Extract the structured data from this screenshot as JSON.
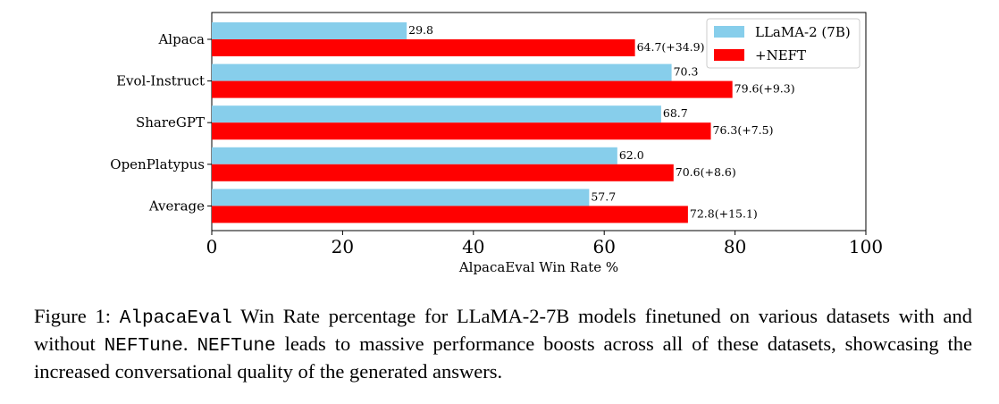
{
  "chart_data": {
    "type": "bar",
    "orientation": "horizontal",
    "categories": [
      "Alpaca",
      "Evol-Instruct",
      "ShareGPT",
      "OpenPlatypus",
      "Average"
    ],
    "series": [
      {
        "name": "LLaMA-2 (7B)",
        "color": "#87ceeb",
        "values": [
          29.8,
          70.3,
          68.7,
          62.0,
          57.7
        ],
        "labels": [
          "29.8",
          "70.3",
          "68.7",
          "62.0",
          "57.7"
        ]
      },
      {
        "name": "+NEFT",
        "color": "#ff0000",
        "values": [
          64.7,
          79.6,
          76.3,
          70.6,
          72.8
        ],
        "labels": [
          "64.7(+34.9)",
          "79.6(+9.3)",
          "76.3(+7.5)",
          "70.6(+8.6)",
          "72.8(+15.1)"
        ]
      }
    ],
    "xlabel": "AlpacaEval Win Rate %",
    "ylabel": "",
    "xlim": [
      0,
      100
    ],
    "xticks": [
      "0",
      "20",
      "40",
      "60",
      "80",
      "100"
    ],
    "legend": "top-right",
    "grid": false
  },
  "caption": {
    "prefix": "Figure 1: ",
    "term1": "AlpacaEval",
    "text1": " Win Rate percentage for LLaMA-2-7B models finetuned on various datasets with and without ",
    "term2": "NEFTune",
    "text2": ". ",
    "term3": "NEFTune",
    "text3": " leads to massive performance boosts across all of these datasets, showcasing the increased conversational quality of the generated answers."
  }
}
